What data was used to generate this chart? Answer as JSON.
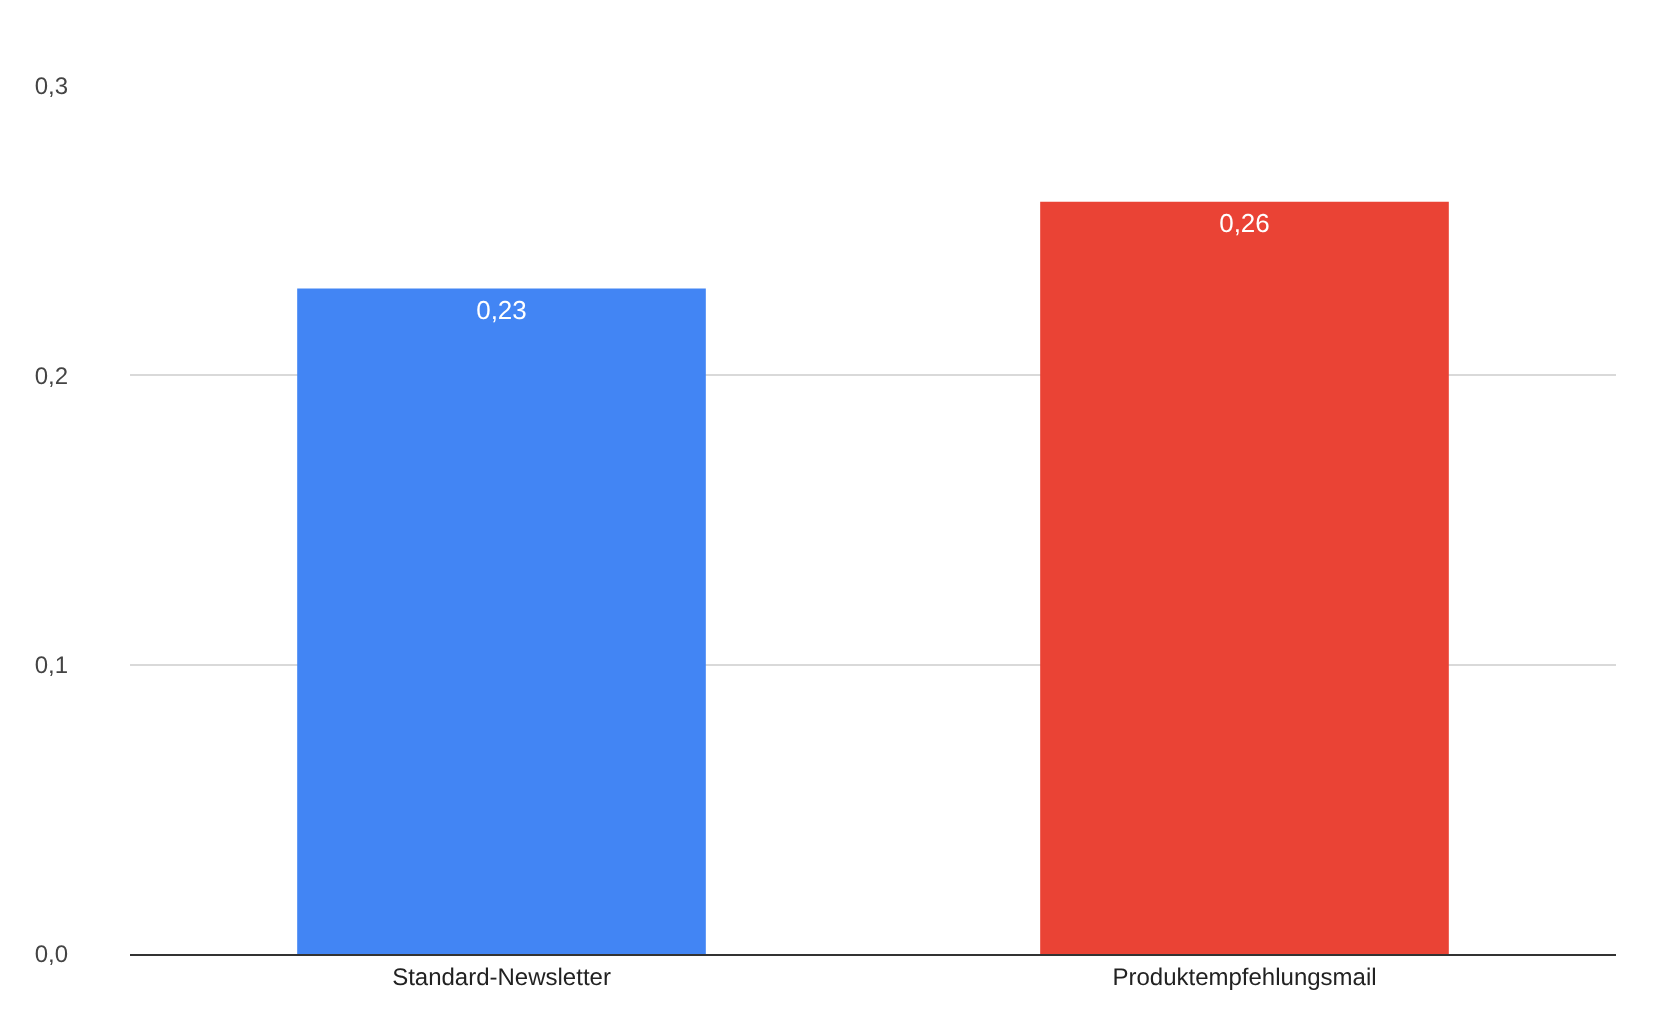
{
  "chart_data": {
    "type": "bar",
    "categories": [
      "Standard-Newsletter",
      "Produktempfehlungsmail"
    ],
    "values": [
      0.23,
      0.26
    ],
    "colors": [
      "#4285f4",
      "#ea4335"
    ],
    "value_labels": [
      "0,23",
      "0,26"
    ],
    "ylim": [
      0,
      0.3
    ],
    "yticks": [
      {
        "value": 0,
        "label": "0,0"
      },
      {
        "value": 0.1,
        "label": "0,1"
      },
      {
        "value": 0.2,
        "label": "0,2"
      },
      {
        "value": 0.3,
        "label": "0,3"
      }
    ],
    "grid": "y"
  }
}
